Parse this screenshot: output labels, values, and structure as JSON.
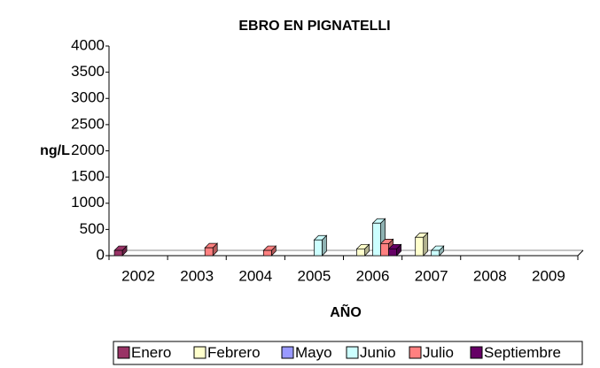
{
  "chart_data": {
    "type": "bar",
    "title": "EBRO EN PIGNATELLI",
    "xlabel": "AÑO",
    "ylabel": "ng/L",
    "categories": [
      "2002",
      "2003",
      "2004",
      "2005",
      "2006",
      "2007",
      "2008",
      "2009"
    ],
    "series": [
      {
        "name": "Enero",
        "color": "#993366",
        "values": [
          100,
          null,
          null,
          null,
          null,
          null,
          null,
          null
        ]
      },
      {
        "name": "Febrero",
        "color": "#FFFFCC",
        "values": [
          null,
          null,
          null,
          null,
          130,
          350,
          null,
          null
        ]
      },
      {
        "name": "Mayo",
        "color": "#9999FF",
        "values": [
          null,
          null,
          null,
          null,
          null,
          null,
          null,
          null
        ]
      },
      {
        "name": "Junio",
        "color": "#CCFFFF",
        "values": [
          null,
          null,
          null,
          300,
          620,
          100,
          null,
          null
        ]
      },
      {
        "name": "Julio",
        "color": "#FF8080",
        "values": [
          null,
          150,
          100,
          null,
          230,
          null,
          null,
          null
        ]
      },
      {
        "name": "Septiembre",
        "color": "#660066",
        "values": [
          null,
          null,
          null,
          null,
          130,
          null,
          null,
          null
        ]
      }
    ],
    "ylim": [
      0,
      4000
    ],
    "yticks": [
      0,
      500,
      1000,
      1500,
      2000,
      2500,
      3000,
      3500,
      4000
    ],
    "grid": false,
    "legend": "bottom"
  }
}
